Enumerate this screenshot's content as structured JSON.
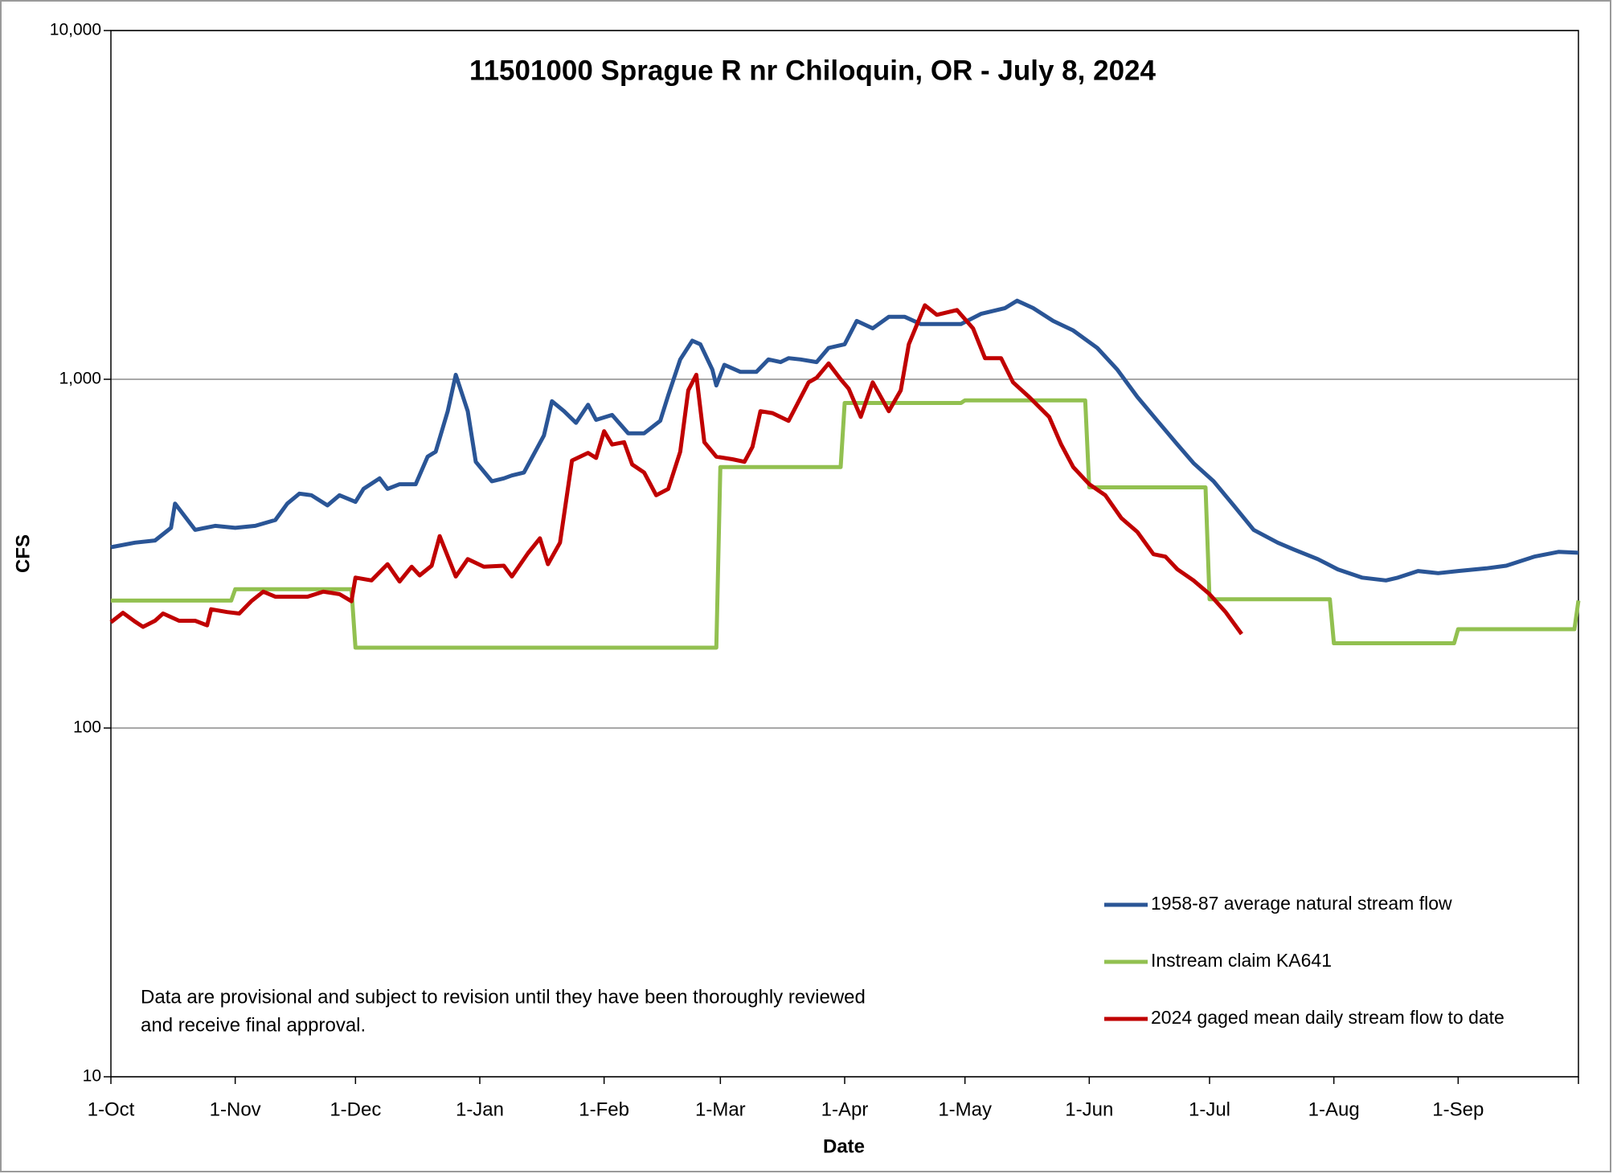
{
  "chart_data": {
    "type": "line",
    "title": "11501000 Sprague R nr Chiloquin, OR   -  July 8, 2024",
    "xlabel": "Date",
    "ylabel": "CFS",
    "yscale": "log",
    "grid": true,
    "legend_position": "lower right",
    "annotations": [
      "Data are provisional and subject to revision until they have been thoroughly reviewed",
      "and receive final approval."
    ],
    "xlim": [
      0,
      366
    ],
    "xticks": [
      {
        "value": 0,
        "label": "1-Oct"
      },
      {
        "value": 31,
        "label": "1-Nov"
      },
      {
        "value": 61,
        "label": "1-Dec"
      },
      {
        "value": 92,
        "label": "1-Jan"
      },
      {
        "value": 123,
        "label": "1-Feb"
      },
      {
        "value": 152,
        "label": "1-Mar"
      },
      {
        "value": 183,
        "label": "1-Apr"
      },
      {
        "value": 213,
        "label": "1-May"
      },
      {
        "value": 244,
        "label": "1-Jun"
      },
      {
        "value": 274,
        "label": "1-Jul"
      },
      {
        "value": 305,
        "label": "1-Aug"
      },
      {
        "value": 336,
        "label": "1-Sep"
      }
    ],
    "ylim": [
      10,
      10000
    ],
    "yticks": [
      10,
      100,
      {
        "value": 1000,
        "label": "1,000"
      },
      {
        "value": 10000,
        "label": "10,000"
      }
    ],
    "series": [
      {
        "name": "1958-87 average natural stream flow",
        "color": "#2a5596",
        "x": [
          0,
          6,
          11,
          15,
          16,
          21,
          26,
          31,
          36,
          41,
          44,
          47,
          50,
          54,
          57,
          61,
          63,
          67,
          69,
          72,
          76,
          79,
          81,
          84,
          86,
          89,
          91,
          95,
          98,
          100,
          103,
          108,
          110,
          113,
          116,
          119,
          121,
          125,
          129,
          133,
          137,
          139,
          142,
          145,
          147,
          150,
          151,
          153,
          157,
          161,
          164,
          167,
          169,
          172,
          176,
          179,
          183,
          186,
          190,
          194,
          198,
          202,
          207,
          212,
          217,
          223,
          226,
          230,
          235,
          240,
          246,
          251,
          256,
          261,
          266,
          270,
          275,
          280,
          285,
          291,
          295,
          301,
          306,
          312,
          318,
          321,
          326,
          331,
          336,
          343,
          348,
          355,
          361,
          366
        ],
        "values": [
          330,
          340,
          345,
          375,
          440,
          370,
          380,
          375,
          380,
          395,
          440,
          470,
          465,
          435,
          465,
          445,
          485,
          520,
          485,
          500,
          500,
          600,
          620,
          810,
          1030,
          810,
          580,
          510,
          520,
          530,
          540,
          690,
          865,
          810,
          750,
          845,
          765,
          790,
          700,
          700,
          760,
          900,
          1140,
          1290,
          1260,
          1065,
          960,
          1100,
          1050,
          1050,
          1140,
          1120,
          1150,
          1140,
          1120,
          1230,
          1260,
          1470,
          1400,
          1510,
          1510,
          1440,
          1440,
          1440,
          1540,
          1600,
          1680,
          1600,
          1470,
          1380,
          1230,
          1065,
          890,
          760,
          650,
          575,
          510,
          435,
          370,
          340,
          325,
          305,
          285,
          270,
          265,
          270,
          282,
          278,
          282,
          287,
          292,
          310,
          320,
          318
        ]
      },
      {
        "name": "Instream claim KA641",
        "color": "#92c050",
        "x": [
          0,
          30,
          31,
          60,
          61,
          151,
          152,
          182,
          183,
          212,
          213,
          243,
          244,
          273,
          274,
          304,
          305,
          335,
          336,
          365,
          366
        ],
        "values": [
          232,
          232,
          250,
          250,
          170,
          170,
          560,
          560,
          855,
          855,
          870,
          870,
          490,
          490,
          234,
          234,
          175,
          175,
          192,
          192,
          232
        ]
      },
      {
        "name": "2024 gaged mean daily stream flow to date",
        "color": "#c00000",
        "x": [
          0,
          3,
          6,
          8,
          11,
          13,
          17,
          21,
          24,
          25,
          29,
          32,
          35,
          38,
          41,
          45,
          49,
          53,
          57,
          60,
          61,
          65,
          69,
          72,
          75,
          77,
          80,
          82,
          86,
          89,
          93,
          98,
          100,
          104,
          107,
          109,
          112,
          115,
          119,
          121,
          123,
          125,
          128,
          130,
          133,
          136,
          139,
          142,
          144,
          146,
          148,
          151,
          155,
          158,
          160,
          162,
          165,
          169,
          174,
          176,
          179,
          182,
          184,
          187,
          190,
          194,
          197,
          199,
          203,
          206,
          211,
          215,
          218,
          222,
          225,
          229,
          234,
          237,
          240,
          244,
          248,
          252,
          256,
          260,
          263,
          266,
          270,
          274,
          278,
          282
        ],
        "values": [
          201,
          214,
          202,
          195,
          203,
          213,
          203,
          203,
          197,
          219,
          215,
          213,
          231,
          246,
          238,
          238,
          238,
          246,
          242,
          231,
          270,
          265,
          295,
          263,
          290,
          274,
          292,
          355,
          272,
          305,
          290,
          292,
          272,
          317,
          350,
          295,
          340,
          585,
          615,
          595,
          710,
          650,
          660,
          570,
          540,
          465,
          485,
          620,
          930,
          1030,
          660,
          600,
          590,
          580,
          640,
          810,
          800,
          760,
          980,
          1010,
          1110,
          1000,
          940,
          780,
          980,
          810,
          930,
          1260,
          1630,
          1530,
          1580,
          1400,
          1150,
          1150,
          980,
          890,
          780,
          650,
          560,
          500,
          465,
          400,
          365,
          315,
          310,
          285,
          265,
          242,
          215,
          186
        ]
      }
    ]
  }
}
